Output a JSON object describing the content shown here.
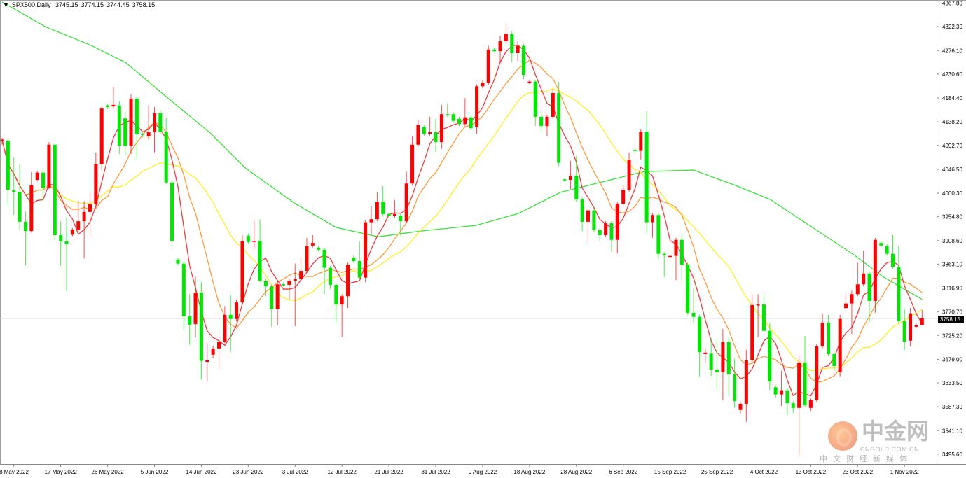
{
  "header": {
    "symbol": "SPX500,Daily",
    "open": "3745.15",
    "high": "3774.15",
    "low": "3744.45",
    "close": "3758.15"
  },
  "watermark": {
    "brand": "中金网",
    "url": "CNGOLD.COM.CN",
    "tagline": "中文财经新媒体"
  },
  "colors": {
    "bull": "#ff0000",
    "bear": "#00e600",
    "grid_line": "#c8ccd0",
    "price_label_bg": "#000000"
  },
  "chart_data": {
    "type": "candlestick",
    "title": "SPX500,Daily",
    "ylim": [
      3476.5,
      4373.9
    ],
    "current_price": "3758.15",
    "y_ticks": [
      "4367.80",
      "4322.30",
      "4276.10",
      "4230.60",
      "4184.40",
      "4138.20",
      "4092.70",
      "4046.50",
      "4000.30",
      "3954.80",
      "3908.60",
      "3863.10",
      "3816.90",
      "3770.70",
      "3725.20",
      "3679.00",
      "3633.50",
      "3587.30",
      "3541.10",
      "3495.60"
    ],
    "x_labels": [
      {
        "bar": 2,
        "label": "8 May 2022"
      },
      {
        "bar": 10,
        "label": "17 May 2022"
      },
      {
        "bar": 18,
        "label": "26 May 2022"
      },
      {
        "bar": 26,
        "label": "5 Jun 2022"
      },
      {
        "bar": 34,
        "label": "14 Jun 2022"
      },
      {
        "bar": 42,
        "label": "23 Jun 2022"
      },
      {
        "bar": 50,
        "label": "3 Jul 2022"
      },
      {
        "bar": 58,
        "label": "12 Jul 2022"
      },
      {
        "bar": 66,
        "label": "21 Jul 2022"
      },
      {
        "bar": 74,
        "label": "31 Jul 2022"
      },
      {
        "bar": 82,
        "label": "9 Aug 2022"
      },
      {
        "bar": 90,
        "label": "18 Aug 2022"
      },
      {
        "bar": 98,
        "label": "28 Aug 2022"
      },
      {
        "bar": 106,
        "label": "6 Sep 2022"
      },
      {
        "bar": 114,
        "label": "15 Sep 2022"
      },
      {
        "bar": 122,
        "label": "25 Sep 2022"
      },
      {
        "bar": 130,
        "label": "4 Oct 2022"
      },
      {
        "bar": 138,
        "label": "13 Oct 2022"
      },
      {
        "bar": 146,
        "label": "23 Oct 2022"
      },
      {
        "bar": 154,
        "label": "1 Nov 2022"
      }
    ],
    "ohlc_columns": [
      "open",
      "high",
      "low",
      "close"
    ],
    "candles": [
      [
        4102,
        4107,
        4094,
        4104
      ],
      [
        4102,
        4104,
        3977,
        4007
      ],
      [
        4006,
        4069,
        3958,
        4003
      ],
      [
        4003,
        4057,
        3930,
        3945
      ],
      [
        3945,
        3965,
        3861,
        3927
      ],
      [
        3927,
        4041,
        3924,
        4016
      ],
      [
        4026,
        4044,
        4023,
        4040
      ],
      [
        4040,
        4049,
        3984,
        4010
      ],
      [
        4011,
        4099,
        4008,
        4094
      ],
      [
        4094,
        4096,
        3910,
        3919
      ],
      [
        3919,
        3946,
        3860,
        3907
      ],
      [
        3907,
        3954,
        3811,
        3902
      ],
      [
        3920,
        3933,
        3917,
        3930
      ],
      [
        3930,
        3985,
        3927,
        3946
      ],
      [
        3946,
        3985,
        3874,
        3964
      ],
      [
        3964,
        4002,
        3916,
        3979
      ],
      [
        3979,
        4079,
        3976,
        4057
      ],
      [
        4057,
        4168,
        4045,
        4164
      ],
      [
        4170,
        4172,
        4163,
        4167
      ],
      [
        4168,
        4205,
        4165,
        4171
      ],
      [
        4170,
        4178,
        4076,
        4092
      ],
      [
        4145,
        4157,
        4073,
        4092
      ],
      [
        4092,
        4191,
        4076,
        4183
      ],
      [
        4183,
        4189,
        4063,
        4114
      ],
      [
        4115,
        4120,
        4108,
        4113
      ],
      [
        4110,
        4170,
        4103,
        4118
      ],
      [
        4118,
        4167,
        4079,
        4155
      ],
      [
        4155,
        4161,
        4115,
        4119
      ],
      [
        4119,
        4147,
        4018,
        4021
      ],
      [
        4021,
        4024,
        3896,
        3908
      ],
      [
        3872,
        3875,
        3860,
        3864
      ],
      [
        3864,
        3867,
        3735,
        3762
      ],
      [
        3762,
        3805,
        3707,
        3746
      ],
      [
        3747,
        3839,
        3722,
        3808
      ],
      [
        3808,
        3828,
        3640,
        3676
      ],
      [
        3674,
        3711,
        3636,
        3677
      ],
      [
        3688,
        3705,
        3681,
        3700
      ],
      [
        3700,
        3727,
        3661,
        3713
      ],
      [
        3713,
        3782,
        3710,
        3765
      ],
      [
        3765,
        3803,
        3693,
        3757
      ],
      [
        3757,
        3795,
        3752,
        3789
      ],
      [
        3789,
        3919,
        3785,
        3908
      ],
      [
        3918,
        3922,
        3902,
        3906
      ],
      [
        3906,
        3948,
        3892,
        3908
      ],
      [
        3908,
        3950,
        3828,
        3831
      ],
      [
        3831,
        3834,
        3801,
        3820
      ],
      [
        3820,
        3824,
        3742,
        3776
      ],
      [
        3776,
        3830,
        3745,
        3824
      ],
      [
        3824,
        3828,
        3820,
        3823
      ],
      [
        3823,
        3835,
        3795,
        3831
      ],
      [
        3831,
        3864,
        3743,
        3834
      ],
      [
        3834,
        3876,
        3830,
        3850
      ],
      [
        3850,
        3914,
        3846,
        3898
      ],
      [
        3899,
        3919,
        3895,
        3904
      ],
      [
        3895,
        3899,
        3888,
        3891
      ],
      [
        3891,
        3895,
        3805,
        3856
      ],
      [
        3856,
        3860,
        3815,
        3823
      ],
      [
        3823,
        3827,
        3751,
        3785
      ],
      [
        3785,
        3805,
        3722,
        3801
      ],
      [
        3801,
        3866,
        3778,
        3862
      ],
      [
        3876,
        3880,
        3865,
        3869
      ],
      [
        3869,
        3907,
        3833,
        3837
      ],
      [
        3837,
        3948,
        3828,
        3944
      ],
      [
        3944,
        3976,
        3920,
        3950
      ],
      [
        3950,
        4002,
        3946,
        3984
      ],
      [
        3984,
        4014,
        3955,
        3960
      ],
      [
        3960,
        3963,
        3953,
        3957
      ],
      [
        3957,
        3987,
        3953,
        3960
      ],
      [
        3957,
        3961,
        3918,
        3946
      ],
      [
        3946,
        4042,
        3942,
        4019
      ],
      [
        4019,
        4110,
        4015,
        4094
      ],
      [
        4094,
        4142,
        4090,
        4132
      ],
      [
        4128,
        4132,
        4111,
        4115
      ],
      [
        4115,
        4148,
        4111,
        4118
      ],
      [
        4118,
        4144,
        4080,
        4099
      ],
      [
        4099,
        4171,
        4086,
        4153
      ],
      [
        4153,
        4174,
        4148,
        4152
      ],
      [
        4153,
        4157,
        4136,
        4140
      ],
      [
        4144,
        4148,
        4130,
        4134
      ],
      [
        4134,
        4184,
        4130,
        4147
      ],
      [
        4147,
        4150,
        4122,
        4126
      ],
      [
        4128,
        4211,
        4114,
        4207
      ],
      [
        4207,
        4218,
        4203,
        4214
      ],
      [
        4214,
        4285,
        4210,
        4278
      ],
      [
        4278,
        4281,
        4272,
        4275
      ],
      [
        4275,
        4305,
        4252,
        4294
      ],
      [
        4294,
        4328,
        4290,
        4308
      ],
      [
        4308,
        4313,
        4255,
        4271
      ],
      [
        4271,
        4294,
        4256,
        4285
      ],
      [
        4285,
        4289,
        4221,
        4229
      ],
      [
        4214,
        4219,
        4211,
        4216
      ],
      [
        4216,
        4220,
        4130,
        4148
      ],
      [
        4148,
        4160,
        4118,
        4130
      ],
      [
        4130,
        4152,
        4110,
        4148
      ],
      [
        4148,
        4201,
        4144,
        4194
      ],
      [
        4194,
        4216,
        4052,
        4059
      ],
      [
        4027,
        4030,
        4022,
        4025
      ],
      [
        4026,
        4063,
        4008,
        4034
      ],
      [
        4034,
        4072,
        3984,
        3988
      ],
      [
        3988,
        3992,
        3927,
        3945
      ],
      [
        3945,
        3971,
        3904,
        3967
      ],
      [
        3967,
        3976,
        3925,
        3929
      ],
      [
        3929,
        3933,
        3907,
        3919
      ],
      [
        3919,
        3946,
        3915,
        3942
      ],
      [
        3942,
        3946,
        3887,
        3910
      ],
      [
        3910,
        3984,
        3884,
        3980
      ],
      [
        3980,
        4015,
        3976,
        4007
      ],
      [
        4007,
        4079,
        4003,
        4065
      ],
      [
        4084,
        4087,
        4079,
        4082
      ],
      [
        4082,
        4124,
        4065,
        4119
      ],
      [
        4119,
        4159,
        3923,
        3944
      ],
      [
        3944,
        3962,
        3914,
        3958
      ],
      [
        3958,
        3962,
        3873,
        3883
      ],
      [
        3883,
        3886,
        3838,
        3880
      ],
      [
        3877,
        3882,
        3874,
        3879
      ],
      [
        3879,
        3914,
        3832,
        3910
      ],
      [
        3910,
        3920,
        3829,
        3862
      ],
      [
        3862,
        3866,
        3765,
        3769
      ],
      [
        3769,
        3816,
        3749,
        3761
      ],
      [
        3761,
        3765,
        3646,
        3693
      ],
      [
        3689,
        3701,
        3673,
        3692
      ],
      [
        3690,
        3720,
        3647,
        3659
      ],
      [
        3659,
        3717,
        3620,
        3654
      ],
      [
        3654,
        3738,
        3600,
        3712
      ],
      [
        3712,
        3722,
        3607,
        3650
      ],
      [
        3650,
        3680,
        3585,
        3598
      ],
      [
        3581,
        3597,
        3575,
        3593
      ],
      [
        3593,
        3697,
        3558,
        3677
      ],
      [
        3677,
        3805,
        3672,
        3784
      ],
      [
        3784,
        3805,
        3722,
        3785
      ],
      [
        3785,
        3805,
        3730,
        3734
      ],
      [
        3734,
        3749,
        3620,
        3636
      ],
      [
        3625,
        3629,
        3605,
        3611
      ],
      [
        3611,
        3657,
        3589,
        3619
      ],
      [
        3619,
        3623,
        3571,
        3594
      ],
      [
        3594,
        3598,
        3575,
        3585
      ],
      [
        3585,
        3686,
        3491,
        3673
      ],
      [
        3673,
        3724,
        3586,
        3590
      ],
      [
        3585,
        3604,
        3579,
        3600
      ],
      [
        3600,
        3708,
        3597,
        3704
      ],
      [
        3704,
        3768,
        3700,
        3750
      ],
      [
        3750,
        3765,
        3685,
        3689
      ],
      [
        3689,
        3694,
        3657,
        3666
      ],
      [
        3654,
        3765,
        3646,
        3757
      ],
      [
        3778,
        3805,
        3774,
        3787
      ],
      [
        3787,
        3812,
        3728,
        3805
      ],
      [
        3805,
        3866,
        3801,
        3824
      ],
      [
        3824,
        3889,
        3820,
        3845
      ],
      [
        3845,
        3849,
        3751,
        3792
      ],
      [
        3792,
        3914,
        3769,
        3910
      ],
      [
        3904,
        3908,
        3895,
        3899
      ],
      [
        3898,
        3902,
        3879,
        3883
      ],
      [
        3883,
        3920,
        3854,
        3858
      ],
      [
        3858,
        3898,
        3749,
        3753
      ],
      [
        3753,
        3776,
        3697,
        3713
      ],
      [
        3715,
        3778,
        3704,
        3768
      ],
      [
        3742,
        3748,
        3740,
        3745
      ],
      [
        3745.15,
        3774.15,
        3744.45,
        3758.15
      ]
    ],
    "moving_averages": [
      {
        "name": "MA5",
        "period": 5,
        "color": "#f03c3c"
      },
      {
        "name": "MA10",
        "period": 10,
        "color": "#ff9a40"
      },
      {
        "name": "MA20",
        "period": 20,
        "color": "#ffee22"
      }
    ],
    "long_ma": {
      "name": "MA60",
      "color": "#3ee03e",
      "points": [
        [
          0,
          4370
        ],
        [
          7.4,
          4322
        ],
        [
          15.2,
          4286
        ],
        [
          21.2,
          4252
        ],
        [
          28.3,
          4184
        ],
        [
          35.5,
          4117
        ],
        [
          41.5,
          4049
        ],
        [
          49.9,
          3981
        ],
        [
          57,
          3934
        ],
        [
          64.2,
          3916
        ],
        [
          71.4,
          3927
        ],
        [
          80.9,
          3938
        ],
        [
          88.1,
          3961
        ],
        [
          95.3,
          4002
        ],
        [
          101.3,
          4019
        ],
        [
          109.6,
          4042
        ],
        [
          118,
          4045
        ],
        [
          125.2,
          4015
        ],
        [
          131.1,
          3988
        ],
        [
          138.3,
          3934
        ],
        [
          145.5,
          3880
        ],
        [
          150.3,
          3839
        ],
        [
          157,
          3795
        ]
      ]
    }
  }
}
